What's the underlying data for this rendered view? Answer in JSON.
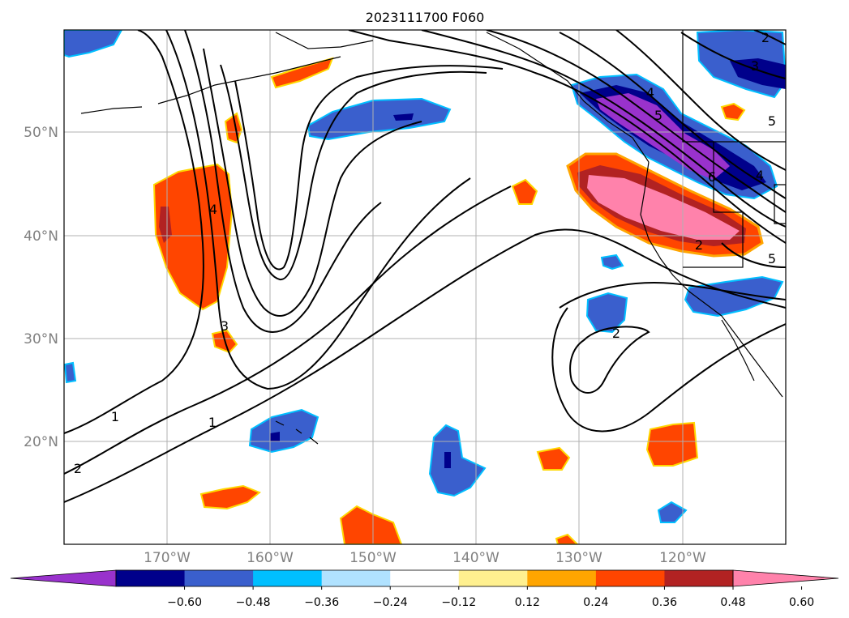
{
  "title": "2023111700 F060",
  "map": {
    "lat_labels": [
      "50°N",
      "40°N",
      "30°N",
      "20°N"
    ],
    "lon_labels": [
      "170°W",
      "160°W",
      "150°W",
      "140°W",
      "130°W",
      "120°W"
    ],
    "contour_labels": [
      "1",
      "1",
      "2",
      "2",
      "3",
      "4",
      "3",
      "4",
      "5",
      "6",
      "5",
      "5",
      "2",
      "4",
      "2"
    ]
  },
  "colorbar": {
    "ticks": [
      "−0.60",
      "−0.48",
      "−0.36",
      "−0.24",
      "−0.12",
      "0.12",
      "0.24",
      "0.36",
      "0.48",
      "0.60"
    ],
    "colors": [
      "#9932cc",
      "#00008b",
      "#3a5fcd",
      "#00bfff",
      "#b0e2ff",
      "#ffffff",
      "#fff08f",
      "#ffa500",
      "#ff4500",
      "#b22222",
      "#ff82ab"
    ]
  }
}
